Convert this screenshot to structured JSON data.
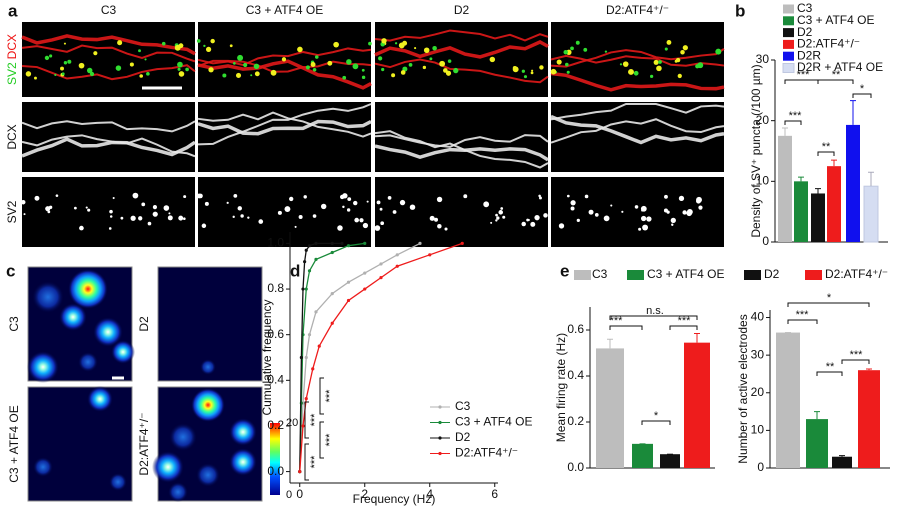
{
  "panel_labels": [
    "a",
    "b",
    "c",
    "d",
    "e"
  ],
  "image_grid": {
    "columns": [
      "C3",
      "C3 + ATF4 OE",
      "D2",
      "D2:ATF4⁺/⁻"
    ],
    "rows": [
      [
        "SV2",
        "DCX"
      ],
      [
        "DCX"
      ],
      [
        "SV2"
      ]
    ]
  },
  "heatmaps": {
    "labels": [
      "C3",
      "D2",
      "C3 + ATF4 OE",
      "D2:ATF4⁺/⁻"
    ],
    "colorbar_ticks": [
      20,
      0
    ]
  },
  "chart_data": [
    {
      "type": "bar",
      "ylabel": "Density of SV⁺ puncta (/100 µm)",
      "categories": [
        "C3",
        "C3 + ATF4 OE",
        "D2",
        "D2:ATF4⁺/⁻",
        "D2R",
        "D2R + ATF4 OE"
      ],
      "colors": [
        "#bdbdbd",
        "#1a8a3a",
        "#111111",
        "#ee1c1c",
        "#1010ee",
        "#d5ddf2"
      ],
      "values": [
        17.5,
        10,
        8,
        12.5,
        19.3,
        9.2
      ],
      "errors": [
        1.3,
        0.7,
        0.8,
        1,
        4,
        2.3
      ],
      "ylim": [
        0,
        30
      ],
      "yticks": [
        0,
        10,
        20,
        30
      ],
      "annotations": [
        "***",
        "**",
        "*",
        "***",
        "**"
      ]
    },
    {
      "type": "line",
      "xlabel": "Frequency (Hz)",
      "ylabel": "Cumulative frequency",
      "xlim": [
        -0.3,
        6.1
      ],
      "xticks": [
        0,
        2,
        4,
        6
      ],
      "ylim": [
        -0.05,
        1.05
      ],
      "yticks": [
        {
          "value": 0,
          "label": "0.0"
        },
        0.2,
        0.4,
        0.6,
        0.8,
        {
          "value": 1,
          "label": "1.0"
        }
      ],
      "series": [
        {
          "name": "C3",
          "color": "#b0b0b0",
          "x": [
            0,
            0.1,
            0.2,
            0.3,
            0.5,
            1.0,
            1.5,
            2.0,
            2.5,
            3.0,
            3.7
          ],
          "values": [
            0,
            0.3,
            0.5,
            0.6,
            0.7,
            0.78,
            0.83,
            0.87,
            0.91,
            0.95,
            1
          ]
        },
        {
          "name": "C3 + ATF4 OE",
          "color": "#1a8a3a",
          "x": [
            0,
            0.05,
            0.1,
            0.2,
            0.3,
            0.5,
            1.0,
            1.5,
            2.0
          ],
          "values": [
            0,
            0.3,
            0.6,
            0.8,
            0.88,
            0.93,
            0.96,
            0.99,
            1
          ]
        },
        {
          "name": "D2",
          "color": "#111111",
          "x": [
            0,
            0.05,
            0.1,
            0.15,
            0.2,
            0.3,
            0.5,
            1.0,
            1.3
          ],
          "values": [
            0,
            0.5,
            0.8,
            0.92,
            0.97,
            0.99,
            1,
            1,
            1
          ]
        },
        {
          "name": "D2:ATF4⁺/⁻",
          "color": "#ee1c1c",
          "x": [
            0,
            0.1,
            0.2,
            0.4,
            0.6,
            1.0,
            1.5,
            2.0,
            2.5,
            3.0,
            4.0,
            5.0
          ],
          "values": [
            0,
            0.2,
            0.32,
            0.45,
            0.55,
            0.65,
            0.75,
            0.8,
            0.85,
            0.9,
            0.95,
            1
          ]
        }
      ],
      "annotations": [
        "***",
        "***",
        "***",
        "***"
      ]
    },
    {
      "type": "bar",
      "ylabel": "Mean firing rate (Hz)",
      "categories": [
        "C3",
        "C3 + ATF4 OE",
        "D2",
        "D2:ATF4⁺/⁻"
      ],
      "colors": [
        "#bdbdbd",
        "#1a8a3a",
        "#111111",
        "#ee1c1c"
      ],
      "values": [
        0.52,
        0.105,
        0.06,
        0.545
      ],
      "errors": [
        0.04,
        0,
        0,
        0.04
      ],
      "ylim": [
        0,
        0.7
      ],
      "yticks": [
        {
          "value": 0,
          "label": "0.0"
        },
        0.2,
        0.4,
        0.6
      ],
      "annotations": [
        "***",
        "n.s.",
        "***",
        "*"
      ]
    },
    {
      "type": "bar",
      "ylabel": "Number of active electrodes",
      "colors": [
        "#bdbdbd",
        "#1a8a3a",
        "#111111",
        "#ee1c1c"
      ],
      "values": [
        36,
        13,
        3,
        26
      ],
      "errors": [
        0,
        2,
        0.3,
        0.3
      ],
      "ylim": [
        0,
        42
      ],
      "yticks": [
        0,
        10,
        20,
        30,
        40
      ],
      "annotations": [
        "***",
        "*",
        "**",
        "***"
      ]
    }
  ]
}
